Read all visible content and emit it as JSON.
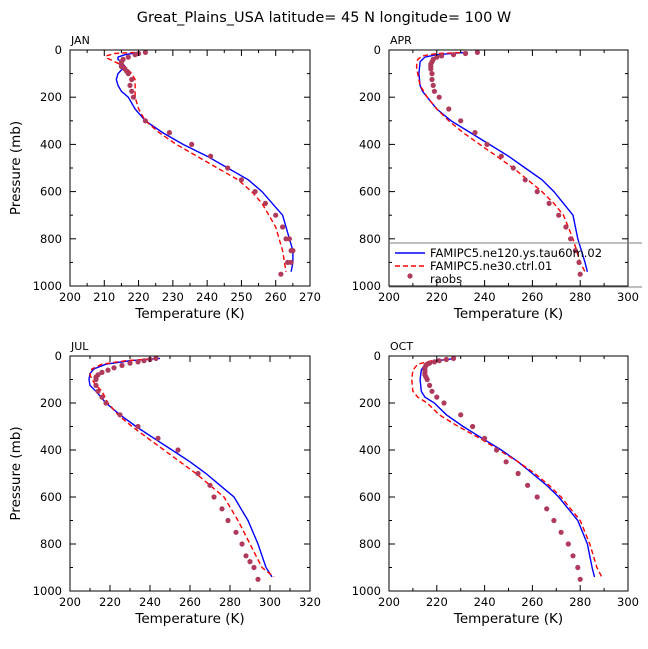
{
  "figure": {
    "title": "Great_Plains_USA  latitude= 45 N longitude= 100 W",
    "colors": {
      "model1": "#0000ff",
      "model2": "#ff0000",
      "obs": "#b03a5b",
      "axis": "#000000",
      "refline": "#7f7f7f"
    }
  },
  "legend": {
    "entries": [
      {
        "name": "FAMIPC5.ne120.ys.tau60m.02",
        "style": "solid-blue"
      },
      {
        "name": "FAMIPC5.ne30.ctrl.01",
        "style": "dashed-red"
      },
      {
        "name": "raobs",
        "style": "dot-maroon"
      }
    ]
  },
  "chart_data": [
    {
      "type": "line",
      "panel": "JAN",
      "title": "JAN",
      "xlabel": "Temperature (K)",
      "ylabel": "Pressure (mb)",
      "xlim": [
        200,
        270
      ],
      "xticks": [
        200,
        210,
        220,
        230,
        240,
        250,
        260,
        270
      ],
      "ylim": [
        1000,
        0
      ],
      "yticks": [
        0,
        200,
        400,
        600,
        800,
        1000
      ],
      "series": [
        {
          "name": "FAMIPC5.ne120.ys.tau60m.02",
          "x": [
            220,
            216,
            214,
            214,
            215,
            216,
            214,
            213.5,
            214,
            215,
            217,
            219,
            222,
            227,
            233,
            240,
            246,
            252,
            256,
            259,
            262,
            264,
            265,
            265,
            264.5
          ],
          "y": [
            10,
            20,
            30,
            40,
            50,
            70,
            100,
            125,
            150,
            175,
            200,
            250,
            300,
            350,
            400,
            450,
            500,
            550,
            600,
            650,
            700,
            800,
            850,
            900,
            940
          ]
        },
        {
          "name": "FAMIPC5.ne30.ctrl.01",
          "x": [
            219,
            213,
            210.5,
            211,
            213,
            216,
            218,
            219,
            219,
            219,
            219,
            220,
            222,
            226,
            231,
            237,
            243,
            249,
            253,
            256,
            258,
            260,
            261,
            262,
            263
          ],
          "y": [
            10,
            15,
            25,
            35,
            50,
            70,
            100,
            125,
            150,
            175,
            200,
            250,
            300,
            350,
            400,
            450,
            500,
            550,
            600,
            650,
            700,
            750,
            800,
            850,
            940
          ]
        },
        {
          "name": "raobs",
          "x": [
            222,
            220,
            219,
            217,
            215.5,
            215,
            215,
            215,
            216,
            216.5,
            217,
            218,
            217.5,
            218,
            218.5,
            222,
            229,
            235.5,
            241,
            246,
            250,
            254,
            257,
            260,
            262,
            263,
            264,
            264.5,
            265,
            264.5,
            263.5,
            261.5
          ],
          "y": [
            10,
            15,
            20,
            30,
            40,
            50,
            60,
            70,
            80,
            90,
            100,
            125,
            150,
            175,
            200,
            300,
            350,
            400,
            450,
            500,
            550,
            600,
            650,
            700,
            750,
            800,
            800,
            850,
            850,
            900,
            900,
            950
          ]
        }
      ]
    },
    {
      "type": "line",
      "panel": "APR",
      "title": "APR",
      "xlabel": "Temperature (K)",
      "ylabel": "",
      "xlim": [
        200,
        300
      ],
      "xticks": [
        200,
        220,
        240,
        260,
        280,
        300
      ],
      "ylim": [
        1000,
        0
      ],
      "yticks": [
        0,
        200,
        400,
        600,
        800,
        1000
      ],
      "series": [
        {
          "name": "FAMIPC5.ne120.ys.tau60m.02",
          "x": [
            232,
            220,
            215,
            213,
            212.5,
            213,
            214,
            216,
            220,
            226,
            234,
            242,
            250,
            257,
            264,
            269,
            273,
            277,
            279,
            282,
            283
          ],
          "y": [
            10,
            20,
            30,
            50,
            100,
            150,
            175,
            200,
            250,
            300,
            350,
            400,
            450,
            500,
            550,
            600,
            650,
            700,
            800,
            900,
            940
          ]
        },
        {
          "name": "FAMIPC5.ne30.ctrl.01",
          "x": [
            233,
            220,
            214,
            212,
            211.5,
            212,
            213,
            216,
            220,
            225,
            231,
            238,
            245,
            252,
            258,
            264,
            269,
            273,
            277,
            280,
            282
          ],
          "y": [
            10,
            15,
            25,
            40,
            70,
            100,
            150,
            200,
            250,
            300,
            350,
            400,
            450,
            500,
            550,
            600,
            650,
            700,
            800,
            900,
            940
          ]
        },
        {
          "name": "raobs",
          "x": [
            237,
            232,
            227,
            222,
            220,
            218.5,
            218,
            217.5,
            217.5,
            217.5,
            218,
            218,
            218.5,
            219,
            221,
            225,
            230,
            236,
            241,
            247,
            252,
            257,
            262,
            267,
            271,
            274,
            276,
            278,
            279.5,
            280
          ],
          "y": [
            10,
            15,
            20,
            25,
            30,
            40,
            50,
            60,
            70,
            80,
            100,
            125,
            150,
            175,
            200,
            250,
            300,
            350,
            400,
            450,
            500,
            550,
            600,
            650,
            700,
            750,
            800,
            850,
            900,
            950
          ]
        }
      ]
    },
    {
      "type": "line",
      "panel": "JUL",
      "title": "JUL",
      "xlabel": "Temperature (K)",
      "ylabel": "Pressure (mb)",
      "xlim": [
        200,
        320
      ],
      "xticks": [
        200,
        220,
        240,
        260,
        280,
        300,
        320
      ],
      "ylim": [
        1000,
        0
      ],
      "yticks": [
        0,
        200,
        400,
        600,
        800,
        1000
      ],
      "series": [
        {
          "name": "FAMIPC5.ne120.ys.tau60m.02",
          "x": [
            245,
            230,
            218,
            212,
            210,
            209.5,
            210,
            213,
            218,
            225,
            233,
            242,
            251,
            260,
            268,
            275,
            282,
            289,
            294,
            298,
            301
          ],
          "y": [
            10,
            20,
            35,
            55,
            75,
            100,
            125,
            150,
            200,
            250,
            300,
            350,
            400,
            450,
            500,
            550,
            600,
            700,
            800,
            900,
            940
          ]
        },
        {
          "name": "FAMIPC5.ne30.ctrl.01",
          "x": [
            244,
            228,
            216,
            211,
            210,
            211,
            213,
            216,
            219,
            224,
            231,
            239,
            247,
            255,
            263,
            270,
            277,
            284,
            290,
            296,
            302
          ],
          "y": [
            10,
            20,
            35,
            55,
            80,
            100,
            125,
            150,
            200,
            250,
            300,
            350,
            400,
            450,
            500,
            550,
            600,
            700,
            800,
            900,
            940
          ]
        },
        {
          "name": "raobs",
          "x": [
            243,
            240,
            237,
            234,
            230,
            226,
            222,
            219,
            216,
            214,
            213,
            213,
            213,
            214,
            216,
            218,
            225,
            234,
            244,
            254,
            264,
            270,
            272,
            276,
            279,
            283,
            286,
            288,
            290,
            292,
            294
          ],
          "y": [
            10,
            15,
            20,
            25,
            30,
            40,
            50,
            60,
            70,
            80,
            90,
            100,
            125,
            150,
            175,
            200,
            250,
            300,
            350,
            400,
            500,
            550,
            600,
            650,
            700,
            750,
            800,
            850,
            875,
            900,
            950
          ]
        }
      ]
    },
    {
      "type": "line",
      "panel": "OCT",
      "title": "OCT",
      "xlabel": "Temperature (K)",
      "ylabel": "",
      "xlim": [
        200,
        300
      ],
      "xticks": [
        200,
        220,
        240,
        260,
        280,
        300
      ],
      "ylim": [
        1000,
        0
      ],
      "yticks": [
        0,
        200,
        400,
        600,
        800,
        1000
      ],
      "series": [
        {
          "name": "FAMIPC5.ne120.ys.tau60m.02",
          "x": [
            228,
            220,
            215,
            213.5,
            213,
            213.5,
            215,
            219,
            224,
            231,
            239,
            247,
            254,
            260,
            266,
            271,
            275,
            279,
            283,
            285,
            286
          ],
          "y": [
            10,
            20,
            35,
            60,
            100,
            150,
            175,
            200,
            250,
            300,
            350,
            400,
            450,
            500,
            550,
            600,
            650,
            700,
            800,
            900,
            940
          ]
        },
        {
          "name": "FAMIPC5.ne30.ctrl.01",
          "x": [
            228,
            218,
            212,
            210,
            209.5,
            210,
            212,
            216,
            221,
            229,
            238,
            246,
            254,
            261,
            267,
            272,
            276,
            280,
            284,
            287,
            289
          ],
          "y": [
            10,
            20,
            35,
            60,
            100,
            150,
            175,
            200,
            250,
            300,
            350,
            400,
            450,
            500,
            550,
            600,
            650,
            700,
            800,
            900,
            940
          ]
        },
        {
          "name": "raobs",
          "x": [
            227,
            224,
            221,
            219,
            217,
            216,
            215.5,
            215,
            215,
            215,
            215,
            215.5,
            216,
            217,
            218,
            220,
            223,
            230,
            235,
            240,
            245,
            249,
            254,
            258,
            262,
            266,
            269,
            272,
            275,
            277,
            279,
            280
          ],
          "y": [
            10,
            15,
            20,
            25,
            30,
            35,
            40,
            50,
            60,
            70,
            80,
            90,
            100,
            125,
            150,
            175,
            200,
            250,
            300,
            350,
            400,
            450,
            500,
            550,
            600,
            650,
            700,
            750,
            800,
            850,
            900,
            950
          ]
        }
      ]
    }
  ]
}
